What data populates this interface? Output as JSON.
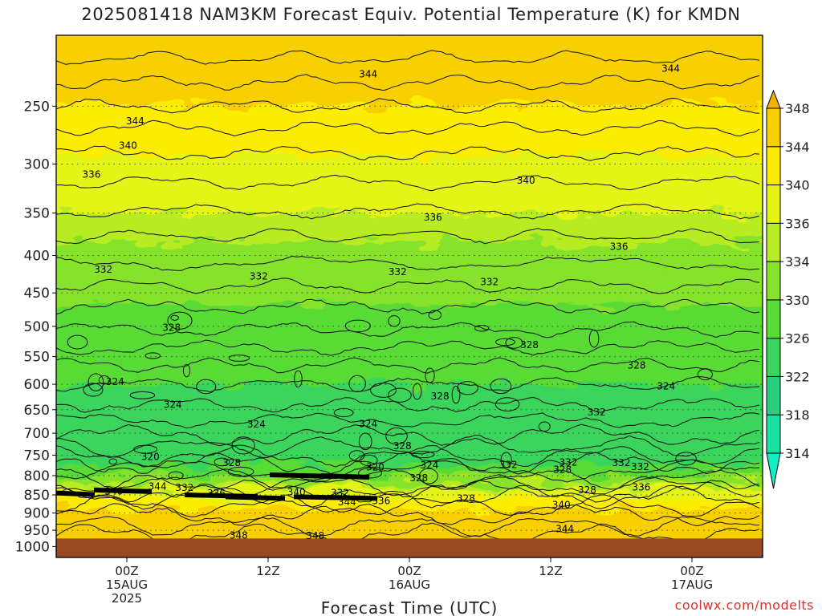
{
  "title": "2025081418 NAM3KM Forecast Equiv. Potential Temperature (K) for KMDN",
  "credit": "coolwx.com/modelts",
  "colors": {
    "background": "#ffffff",
    "frame": "#000000",
    "contour": "#111111",
    "ground": "#9a4a22",
    "scale": [
      "#10f0c4",
      "#19e0a0",
      "#28d07e",
      "#3ad45c",
      "#58dc36",
      "#86e22a",
      "#b8ec24",
      "#e4f414",
      "#fcec00",
      "#f8d000",
      "#f0b400"
    ],
    "credit": "#e0302a"
  },
  "chart_data": {
    "type": "heatmap",
    "title": "2025081418 NAM3KM Forecast Equiv. Potential Temperature (K) for KMDN",
    "xlabel": "Forecast Time (UTC)",
    "ylabel": "",
    "x_ticks": [
      {
        "lines": [
          "00Z",
          "15AUG",
          "2025"
        ]
      },
      {
        "lines": [
          "12Z"
        ]
      },
      {
        "lines": [
          "00Z",
          "16AUG"
        ]
      },
      {
        "lines": [
          "12Z"
        ]
      },
      {
        "lines": [
          "00Z",
          "17AUG"
        ]
      }
    ],
    "x_tick_hours": [
      0,
      12,
      24,
      36,
      48
    ],
    "x_range_hours": [
      -6,
      54
    ],
    "y_axis": "pressure (log scale)",
    "y_ticks": [
      250,
      300,
      350,
      400,
      450,
      500,
      550,
      600,
      650,
      700,
      750,
      800,
      850,
      900,
      950,
      1000
    ],
    "y_range": [
      200,
      1035
    ],
    "colorbar": {
      "levels": [
        314,
        318,
        322,
        326,
        330,
        334,
        336,
        340,
        344,
        348
      ],
      "colors": [
        "#10f0c4",
        "#19e0a0",
        "#28d07e",
        "#3ad45c",
        "#58dc36",
        "#86e22a",
        "#b8ec24",
        "#e4f414",
        "#fcec00",
        "#f8d000",
        "#f0b400"
      ],
      "extend": "both"
    },
    "profiles": [
      {
        "pressure": 200,
        "theta_e": 347
      },
      {
        "pressure": 250,
        "theta_e": 344
      },
      {
        "pressure": 300,
        "theta_e": 339
      },
      {
        "pressure": 350,
        "theta_e": 336
      },
      {
        "pressure": 400,
        "theta_e": 333
      },
      {
        "pressure": 450,
        "theta_e": 331
      },
      {
        "pressure": 500,
        "theta_e": 328
      },
      {
        "pressure": 550,
        "theta_e": 327
      },
      {
        "pressure": 600,
        "theta_e": 326
      },
      {
        "pressure": 650,
        "theta_e": 325
      },
      {
        "pressure": 700,
        "theta_e": 323
      },
      {
        "pressure": 750,
        "theta_e": 322
      },
      {
        "pressure": 800,
        "theta_e": 330
      },
      {
        "pressure": 850,
        "theta_e": 339
      },
      {
        "pressure": 900,
        "theta_e": 345
      },
      {
        "pressure": 950,
        "theta_e": 348
      },
      {
        "pressure": 1000,
        "theta_e": 347
      }
    ],
    "contour_labels": [
      {
        "text": "344",
        "hour": 0.7,
        "pressure": 262
      },
      {
        "text": "340",
        "hour": 0.1,
        "pressure": 283
      },
      {
        "text": "336",
        "hour": -3.0,
        "pressure": 310
      },
      {
        "text": "344",
        "hour": 20.5,
        "pressure": 226
      },
      {
        "text": "344",
        "hour": 46.2,
        "pressure": 222
      },
      {
        "text": "340",
        "hour": 33.9,
        "pressure": 316
      },
      {
        "text": "336",
        "hour": 26.0,
        "pressure": 355
      },
      {
        "text": "336",
        "hour": 41.8,
        "pressure": 389
      },
      {
        "text": "332",
        "hour": -2.0,
        "pressure": 418
      },
      {
        "text": "332",
        "hour": 11.2,
        "pressure": 427
      },
      {
        "text": "332",
        "hour": 23.0,
        "pressure": 421
      },
      {
        "text": "332",
        "hour": 30.8,
        "pressure": 435
      },
      {
        "text": "328",
        "hour": 3.8,
        "pressure": 502
      },
      {
        "text": "328",
        "hour": 34.2,
        "pressure": 530
      },
      {
        "text": "328",
        "hour": 43.3,
        "pressure": 565
      },
      {
        "text": "324",
        "hour": -1.0,
        "pressure": 595
      },
      {
        "text": "324",
        "hour": 3.9,
        "pressure": 640
      },
      {
        "text": "324",
        "hour": 45.8,
        "pressure": 604
      },
      {
        "text": "328",
        "hour": 26.6,
        "pressure": 623
      },
      {
        "text": "332",
        "hour": 39.9,
        "pressure": 655
      },
      {
        "text": "324",
        "hour": 11.0,
        "pressure": 681
      },
      {
        "text": "324",
        "hour": 20.5,
        "pressure": 680
      },
      {
        "text": "328",
        "hour": 23.4,
        "pressure": 729
      },
      {
        "text": "320",
        "hour": 2.0,
        "pressure": 754
      },
      {
        "text": "328",
        "hour": 8.9,
        "pressure": 768
      },
      {
        "text": "320",
        "hour": 21.1,
        "pressure": 779
      },
      {
        "text": "324",
        "hour": 25.7,
        "pressure": 774
      },
      {
        "text": "332",
        "hour": 32.4,
        "pressure": 773
      },
      {
        "text": "332",
        "hour": 37.5,
        "pressure": 767
      },
      {
        "text": "328",
        "hour": 37.0,
        "pressure": 785
      },
      {
        "text": "332",
        "hour": 42.0,
        "pressure": 768
      },
      {
        "text": "332",
        "hour": 43.6,
        "pressure": 778
      },
      {
        "text": "328",
        "hour": 24.8,
        "pressure": 806
      },
      {
        "text": "340",
        "hour": -1.1,
        "pressure": 840
      },
      {
        "text": "344",
        "hour": 2.6,
        "pressure": 828
      },
      {
        "text": "332",
        "hour": 4.9,
        "pressure": 831
      },
      {
        "text": "336",
        "hour": 7.6,
        "pressure": 846
      },
      {
        "text": "340",
        "hour": 14.4,
        "pressure": 842
      },
      {
        "text": "332",
        "hour": 18.1,
        "pressure": 845
      },
      {
        "text": "344",
        "hour": 18.7,
        "pressure": 870
      },
      {
        "text": "336",
        "hour": 21.6,
        "pressure": 866
      },
      {
        "text": "328",
        "hour": 28.8,
        "pressure": 860
      },
      {
        "text": "328",
        "hour": 39.1,
        "pressure": 837
      },
      {
        "text": "336",
        "hour": 43.7,
        "pressure": 830
      },
      {
        "text": "340",
        "hour": 36.9,
        "pressure": 877
      },
      {
        "text": "344",
        "hour": 37.2,
        "pressure": 946
      },
      {
        "text": "348",
        "hour": 9.5,
        "pressure": 966
      },
      {
        "text": "348",
        "hour": 16.0,
        "pressure": 967
      }
    ],
    "grid": "dotted horizontal",
    "legend": "colorbar right"
  }
}
